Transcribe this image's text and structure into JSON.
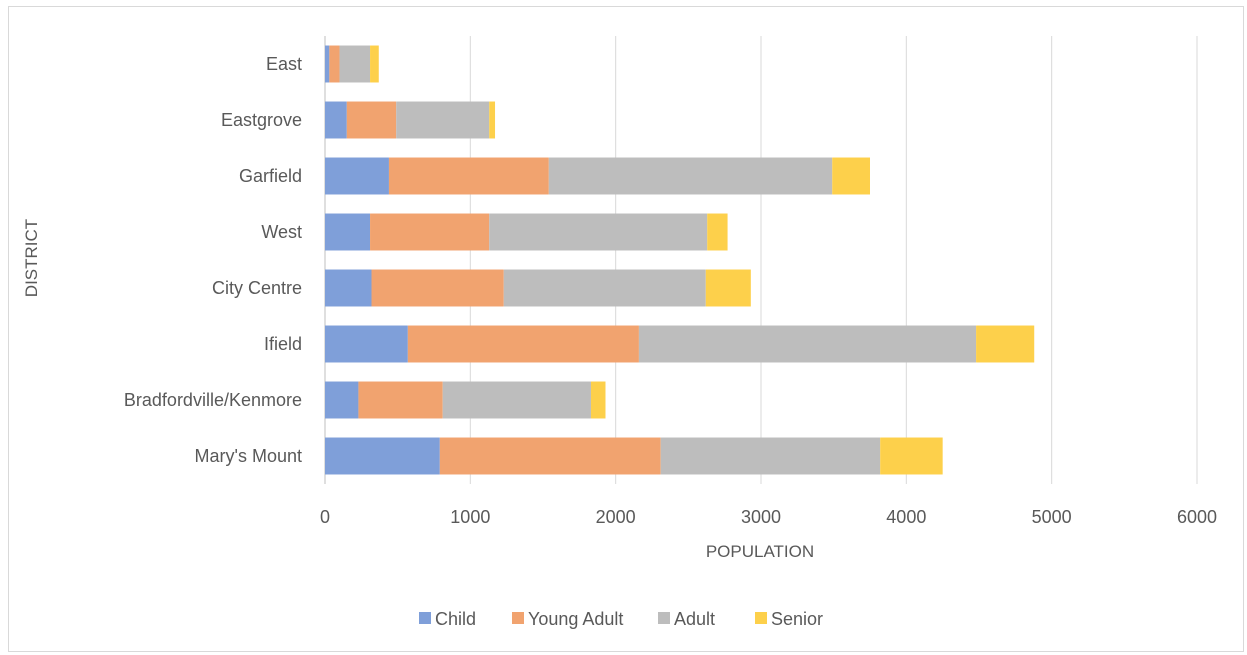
{
  "chart_data": {
    "type": "bar",
    "orientation": "horizontal",
    "stacked": true,
    "title": "",
    "xlabel": "POPULATION",
    "ylabel": "DISTRICT",
    "xlim": [
      0,
      6000
    ],
    "xticks": [
      "0",
      "1000",
      "2000",
      "3000",
      "4000",
      "5000",
      "6000"
    ],
    "grid": true,
    "legend_position": "bottom",
    "categories": [
      "East",
      "Eastgrove",
      "Garfield",
      "West",
      "City Centre",
      "Ifield",
      "Bradfordville/Kenmore",
      "Mary's Mount"
    ],
    "series": [
      {
        "name": "Child",
        "color": "#7f9fd9",
        "values": [
          30,
          150,
          440,
          310,
          320,
          570,
          230,
          790
        ]
      },
      {
        "name": "Young Adult",
        "color": "#f1a36f",
        "values": [
          70,
          340,
          1100,
          820,
          910,
          1590,
          580,
          1520
        ]
      },
      {
        "name": "Adult",
        "color": "#bdbdbd",
        "values": [
          210,
          640,
          1950,
          1500,
          1390,
          2320,
          1020,
          1510
        ]
      },
      {
        "name": "Senior",
        "color": "#fdd04b",
        "values": [
          60,
          40,
          260,
          140,
          310,
          400,
          100,
          430
        ]
      }
    ]
  }
}
